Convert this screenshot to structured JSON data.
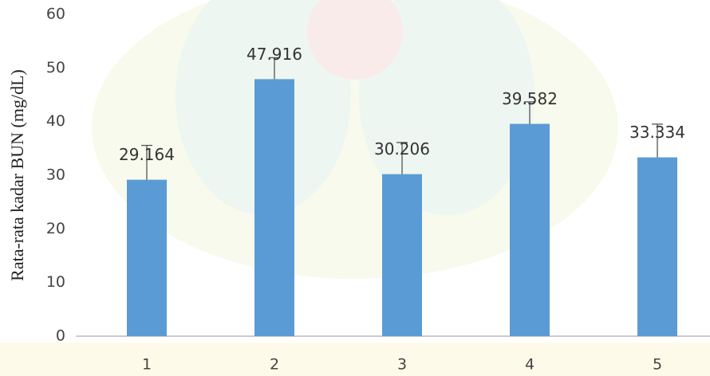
{
  "chart_data": {
    "type": "bar",
    "y_label": "Rata-rata kadar BUN (mg/dL)",
    "categories": [
      "1",
      "2",
      "3",
      "4",
      "5"
    ],
    "values": [
      29.164,
      47.916,
      30.206,
      39.582,
      33.334
    ],
    "errors": [
      6.4,
      4.0,
      5.9,
      4.1,
      6.2
    ],
    "color": "#5b9bd5",
    "ylim": [
      0,
      60
    ],
    "yticks": [
      0,
      10,
      20,
      30,
      40,
      50,
      60
    ],
    "grid": false
  }
}
